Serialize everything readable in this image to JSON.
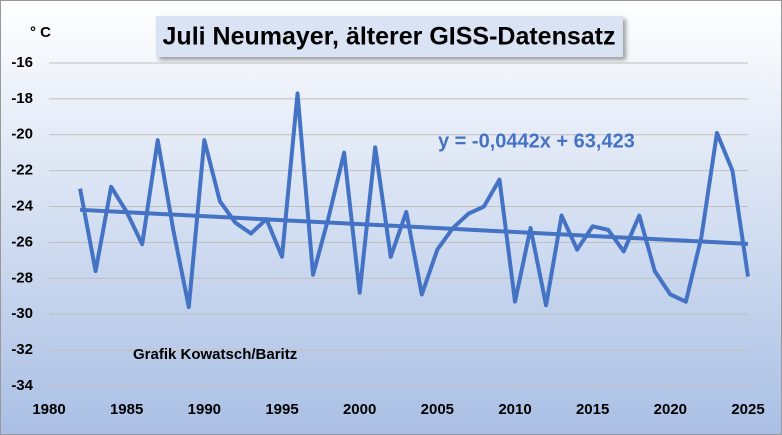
{
  "chart_data": {
    "type": "line",
    "title": "Juli Neumayer, älterer GISS-Datensatz",
    "y_label": "° C",
    "annotation": "Grafik Kowatsch/Baritz",
    "x": [
      1982,
      1983,
      1984,
      1985,
      1986,
      1987,
      1988,
      1989,
      1990,
      1991,
      1992,
      1993,
      1994,
      1995,
      1996,
      1997,
      1998,
      1999,
      2000,
      2001,
      2002,
      2003,
      2004,
      2005,
      2006,
      2007,
      2008,
      2009,
      2010,
      2011,
      2012,
      2013,
      2014,
      2015,
      2016,
      2017,
      2018,
      2019,
      2020,
      2021,
      2022,
      2023,
      2024,
      2025
    ],
    "series": [
      {
        "color": "#4472c4",
        "values": [
          -23.0,
          -27.6,
          -22.9,
          -24.3,
          -26.1,
          -20.3,
          -25.3,
          -29.6,
          -20.3,
          -23.7,
          -24.9,
          -25.5,
          -24.7,
          -26.8,
          -17.7,
          -27.8,
          -24.6,
          -21.0,
          -28.8,
          -20.7,
          -26.8,
          -24.3,
          -28.9,
          -26.4,
          -25.2,
          -24.4,
          -24.0,
          -22.5,
          -29.3,
          -25.2,
          -29.5,
          -24.5,
          -26.4,
          -25.1,
          -25.3,
          -26.5,
          -24.5,
          -27.6,
          -28.9,
          -29.3,
          -25.7,
          -19.9,
          -22.0,
          -27.9
        ]
      }
    ],
    "trendline": {
      "label": "y = -0,0442x + 63,423",
      "slope": -0.0442,
      "intercept": 63.423,
      "color": "#4472c4"
    },
    "xlim": [
      1980,
      2025
    ],
    "xticks": [
      1980,
      1985,
      1990,
      1995,
      2000,
      2005,
      2010,
      2015,
      2020,
      2025
    ],
    "ylim": [
      -34,
      -16
    ],
    "yticks": [
      -16,
      -18,
      -20,
      -22,
      -24,
      -26,
      -28,
      -30,
      -32,
      -34
    ],
    "grid": true
  }
}
